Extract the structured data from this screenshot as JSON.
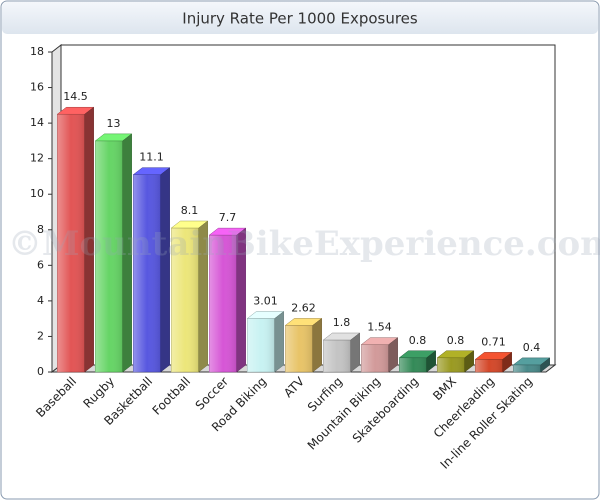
{
  "chart_data": {
    "type": "bar3d",
    "title": "Injury Rate Per 1000 Exposures",
    "watermark": "©MountainBikeExperience.com",
    "categories": [
      "Baseball",
      "Rugby",
      "Basketball",
      "Football",
      "Soccer",
      "Road Biking",
      "ATV",
      "Surfing",
      "Mountain Biking",
      "Skateboarding",
      "BMX",
      "Cheerleading",
      "In-line Roller Skating"
    ],
    "values": [
      14.5,
      13,
      11.1,
      8.1,
      7.7,
      3.01,
      2.62,
      1.8,
      1.54,
      0.8,
      0.8,
      0.71,
      0.4
    ],
    "colors": [
      "#e25555",
      "#66d566",
      "#5858e0",
      "#ece67a",
      "#d656d6",
      "#c8f2f2",
      "#e8c468",
      "#c4c4c4",
      "#d29a9a",
      "#348a58",
      "#9a9a22",
      "#d4482a",
      "#4a8a8a"
    ],
    "ylim": [
      0,
      18
    ],
    "yticks": [
      0,
      2,
      4,
      6,
      8,
      10,
      12,
      14,
      16,
      18
    ],
    "grid": false
  }
}
